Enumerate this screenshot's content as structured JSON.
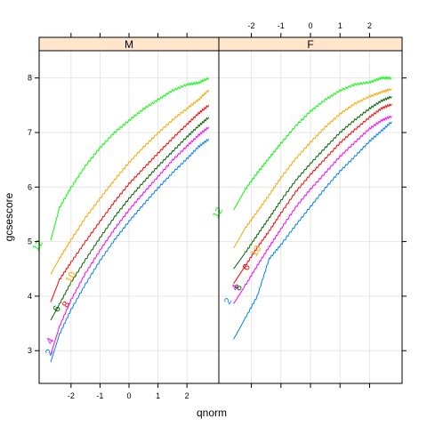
{
  "chart_data": {
    "type": "line",
    "xlabel": "qnorm",
    "ylabel": "gcsescore",
    "xlim": [
      -3.1,
      3.1
    ],
    "ylim": [
      2.4,
      8.5
    ],
    "x_ticks": [
      -2,
      -1,
      0,
      1,
      2
    ],
    "y_ticks": [
      3,
      4,
      5,
      6,
      7,
      8
    ],
    "grid": true,
    "panels": [
      {
        "strip_label": "M",
        "series": [
          {
            "label": "2",
            "color": "#0080ff",
            "label_at": [
              -2.66,
              2.94
            ],
            "points": [
              [
                -2.7,
                2.79
              ],
              [
                -2.4,
                3.3
              ],
              [
                -2.0,
                3.75
              ],
              [
                -1.5,
                4.22
              ],
              [
                -1.0,
                4.65
              ],
              [
                -0.5,
                5.03
              ],
              [
                0.0,
                5.37
              ],
              [
                0.5,
                5.68
              ],
              [
                1.0,
                5.98
              ],
              [
                1.5,
                6.26
              ],
              [
                2.0,
                6.52
              ],
              [
                2.4,
                6.74
              ],
              [
                2.75,
                6.88
              ]
            ]
          },
          {
            "label": "4",
            "color": "#ff00ff",
            "label_at": [
              -2.63,
              3.15
            ],
            "points": [
              [
                -2.7,
                2.93
              ],
              [
                -2.4,
                3.44
              ],
              [
                -2.0,
                3.93
              ],
              [
                -1.5,
                4.42
              ],
              [
                -1.0,
                4.84
              ],
              [
                -0.5,
                5.23
              ],
              [
                0.0,
                5.58
              ],
              [
                0.5,
                5.89
              ],
              [
                1.0,
                6.19
              ],
              [
                1.5,
                6.49
              ],
              [
                2.0,
                6.75
              ],
              [
                2.4,
                6.95
              ],
              [
                2.75,
                7.1
              ]
            ]
          },
          {
            "label": "6",
            "color": "#006400",
            "label_at": [
              -2.4,
              3.74
            ],
            "points": [
              [
                -2.7,
                3.56
              ],
              [
                -2.4,
                3.85
              ],
              [
                -2.0,
                4.25
              ],
              [
                -1.5,
                4.67
              ],
              [
                -1.0,
                5.07
              ],
              [
                -0.5,
                5.45
              ],
              [
                0.0,
                5.79
              ],
              [
                0.5,
                6.09
              ],
              [
                1.0,
                6.38
              ],
              [
                1.5,
                6.65
              ],
              [
                2.0,
                6.92
              ],
              [
                2.4,
                7.12
              ],
              [
                2.75,
                7.28
              ]
            ]
          },
          {
            "label": "8",
            "color": "#ff0000",
            "label_at": [
              -2.08,
              3.82
            ],
            "points": [
              [
                -2.7,
                3.89
              ],
              [
                -2.4,
                4.3
              ],
              [
                -2.0,
                4.62
              ],
              [
                -1.5,
                5.0
              ],
              [
                -1.0,
                5.37
              ],
              [
                -0.5,
                5.73
              ],
              [
                0.0,
                6.06
              ],
              [
                0.5,
                6.34
              ],
              [
                1.0,
                6.62
              ],
              [
                1.5,
                6.89
              ],
              [
                2.0,
                7.15
              ],
              [
                2.4,
                7.35
              ],
              [
                2.75,
                7.5
              ]
            ]
          },
          {
            "label": "10",
            "color": "#ffa500",
            "label_at": [
              -1.92,
              4.32
            ],
            "points": [
              [
                -2.7,
                4.4
              ],
              [
                -2.4,
                4.69
              ],
              [
                -2.0,
                5.03
              ],
              [
                -1.5,
                5.44
              ],
              [
                -1.0,
                5.79
              ],
              [
                -0.5,
                6.13
              ],
              [
                0.0,
                6.45
              ],
              [
                0.5,
                6.73
              ],
              [
                1.0,
                6.99
              ],
              [
                1.5,
                7.23
              ],
              [
                2.0,
                7.44
              ],
              [
                2.4,
                7.6
              ],
              [
                2.75,
                7.78
              ]
            ]
          },
          {
            "label": "12",
            "color": "#00ff00",
            "label_at": [
              -3.05,
              4.9
            ],
            "points": [
              [
                -2.7,
                5.02
              ],
              [
                -2.4,
                5.62
              ],
              [
                -2.0,
                5.99
              ],
              [
                -1.5,
                6.39
              ],
              [
                -1.0,
                6.72
              ],
              [
                -0.5,
                7.0
              ],
              [
                0.0,
                7.22
              ],
              [
                0.5,
                7.43
              ],
              [
                1.0,
                7.6
              ],
              [
                1.5,
                7.77
              ],
              [
                2.0,
                7.88
              ],
              [
                2.4,
                7.91
              ],
              [
                2.75,
                8.0
              ]
            ]
          }
        ]
      },
      {
        "strip_label": "F",
        "series": [
          {
            "label": "2",
            "color": "#0080ff",
            "label_at": [
              -2.7,
              3.88
            ],
            "points": [
              [
                -2.6,
                3.21
              ],
              [
                -2.2,
                3.6
              ],
              [
                -1.8,
                4.0
              ],
              [
                -1.4,
                4.68
              ],
              [
                -1.0,
                4.94
              ],
              [
                -0.5,
                5.3
              ],
              [
                0.0,
                5.64
              ],
              [
                0.5,
                5.98
              ],
              [
                1.0,
                6.29
              ],
              [
                1.5,
                6.56
              ],
              [
                2.0,
                6.84
              ],
              [
                2.4,
                7.03
              ],
              [
                2.75,
                7.2
              ]
            ]
          },
          {
            "label": "4",
            "color": "#ff00ff",
            "label_at": [
              -2.45,
              4.13
            ],
            "points": [
              [
                -2.6,
                3.86
              ],
              [
                -2.2,
                4.2
              ],
              [
                -1.8,
                4.56
              ],
              [
                -1.4,
                4.9
              ],
              [
                -1.0,
                5.23
              ],
              [
                -0.5,
                5.63
              ],
              [
                0.0,
                5.96
              ],
              [
                0.5,
                6.26
              ],
              [
                1.0,
                6.56
              ],
              [
                1.5,
                6.82
              ],
              [
                2.0,
                7.07
              ],
              [
                2.4,
                7.22
              ],
              [
                2.75,
                7.3
              ]
            ]
          },
          {
            "label": "6",
            "color": "#ff0000",
            "label_at": [
              -2.08,
              4.5
            ],
            "points": [
              [
                -2.6,
                4.23
              ],
              [
                -2.2,
                4.56
              ],
              [
                -1.8,
                4.89
              ],
              [
                -1.4,
                5.19
              ],
              [
                -1.0,
                5.52
              ],
              [
                -0.5,
                5.91
              ],
              [
                0.0,
                6.23
              ],
              [
                0.5,
                6.52
              ],
              [
                1.0,
                6.81
              ],
              [
                1.5,
                7.05
              ],
              [
                2.0,
                7.28
              ],
              [
                2.4,
                7.44
              ],
              [
                2.75,
                7.52
              ]
            ]
          },
          {
            "label": "8",
            "color": "#006400",
            "label_at": [
              -2.35,
              4.13
            ],
            "points": [
              [
                -2.6,
                4.5
              ],
              [
                -2.2,
                4.8
              ],
              [
                -1.8,
                5.12
              ],
              [
                -1.4,
                5.43
              ],
              [
                -1.0,
                5.75
              ],
              [
                -0.5,
                6.12
              ],
              [
                0.0,
                6.43
              ],
              [
                0.5,
                6.72
              ],
              [
                1.0,
                7.0
              ],
              [
                1.5,
                7.23
              ],
              [
                2.0,
                7.44
              ],
              [
                2.4,
                7.58
              ],
              [
                2.75,
                7.66
              ]
            ]
          },
          {
            "label": "10",
            "color": "#ffa500",
            "label_at": [
              -1.75,
              4.8
            ],
            "points": [
              [
                -2.6,
                4.88
              ],
              [
                -2.2,
                5.25
              ],
              [
                -1.8,
                5.55
              ],
              [
                -1.4,
                5.85
              ],
              [
                -1.0,
                6.17
              ],
              [
                -0.5,
                6.52
              ],
              [
                0.0,
                6.82
              ],
              [
                0.5,
                7.1
              ],
              [
                1.0,
                7.34
              ],
              [
                1.5,
                7.53
              ],
              [
                2.0,
                7.66
              ],
              [
                2.4,
                7.74
              ],
              [
                2.75,
                7.8
              ]
            ]
          },
          {
            "label": "12",
            "color": "#00ff00",
            "label_at": [
              -3.05,
              5.5
            ],
            "points": [
              [
                -2.6,
                5.58
              ],
              [
                -2.2,
                5.96
              ],
              [
                -1.8,
                6.26
              ],
              [
                -1.4,
                6.53
              ],
              [
                -1.0,
                6.8
              ],
              [
                -0.5,
                7.12
              ],
              [
                0.0,
                7.39
              ],
              [
                0.5,
                7.6
              ],
              [
                1.0,
                7.77
              ],
              [
                1.5,
                7.88
              ],
              [
                2.0,
                7.92
              ],
              [
                2.4,
                8.0
              ],
              [
                2.75,
                8.0
              ]
            ]
          }
        ]
      }
    ]
  }
}
